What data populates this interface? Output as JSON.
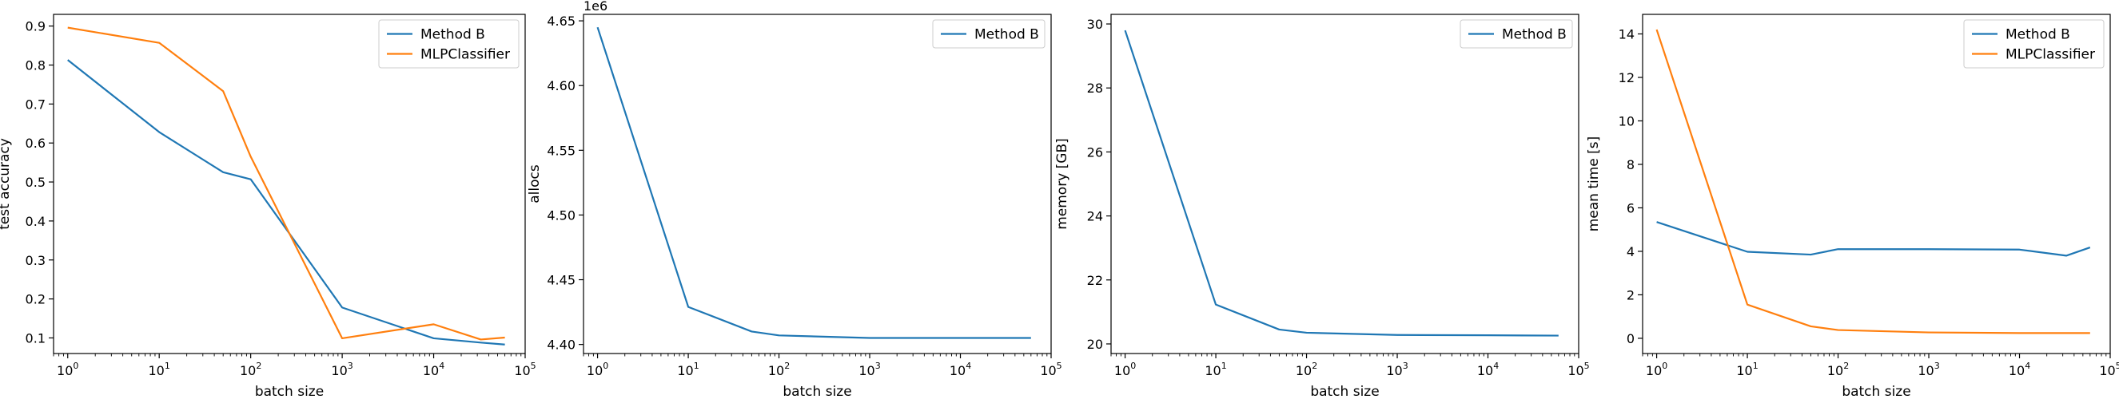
{
  "chart_data": [
    {
      "type": "line",
      "xscale": "log",
      "xlim": [
        0.7,
        100000
      ],
      "ylim": [
        0.06,
        0.93
      ],
      "yticks": [
        0.1,
        0.2,
        0.3,
        0.4,
        0.5,
        0.6,
        0.7,
        0.8,
        0.9
      ],
      "ytick_labels": [
        "0.1",
        "0.2",
        "0.3",
        "0.4",
        "0.5",
        "0.6",
        "0.7",
        "0.8",
        "0.9"
      ],
      "xlabel": "batch size",
      "ylabel": "test accuracy",
      "offset_text": "",
      "legend": "top-right",
      "series": [
        {
          "name": "Method B",
          "color": "#1f77b4",
          "x": [
            1,
            10,
            50,
            100,
            1000,
            10000,
            32768,
            60000
          ],
          "y": [
            0.813,
            0.628,
            0.525,
            0.507,
            0.178,
            0.099,
            0.088,
            0.083
          ]
        },
        {
          "name": "MLPClassifier",
          "color": "#ff7f0e",
          "x": [
            1,
            10,
            50,
            100,
            1000,
            10000,
            32768,
            60000
          ],
          "y": [
            0.896,
            0.857,
            0.733,
            0.565,
            0.099,
            0.135,
            0.096,
            0.101
          ]
        }
      ]
    },
    {
      "type": "line",
      "xscale": "log",
      "xlim": [
        0.7,
        100000
      ],
      "ylim": [
        4.393,
        4.655
      ],
      "yticks": [
        4.4,
        4.45,
        4.5,
        4.55,
        4.6,
        4.65
      ],
      "ytick_labels": [
        "4.40",
        "4.45",
        "4.50",
        "4.55",
        "4.60",
        "4.65"
      ],
      "xlabel": "batch size",
      "ylabel": "allocs",
      "offset_text": "1e6",
      "legend": "top-right",
      "series": [
        {
          "name": "Method B",
          "color": "#1f77b4",
          "x": [
            1,
            10,
            50,
            100,
            1000,
            10000,
            60000
          ],
          "y": [
            4.645,
            4.429,
            4.41,
            4.407,
            4.405,
            4.405,
            4.405
          ]
        }
      ]
    },
    {
      "type": "line",
      "xscale": "log",
      "xlim": [
        0.7,
        100000
      ],
      "ylim": [
        19.7,
        30.3
      ],
      "yticks": [
        20,
        22,
        24,
        26,
        28,
        30
      ],
      "ytick_labels": [
        "20",
        "22",
        "24",
        "26",
        "28",
        "30"
      ],
      "xlabel": "batch size",
      "ylabel": "memory [GB]",
      "offset_text": "",
      "legend": "top-right",
      "series": [
        {
          "name": "Method B",
          "color": "#1f77b4",
          "x": [
            1,
            10,
            50,
            100,
            1000,
            10000,
            60000
          ],
          "y": [
            29.8,
            21.23,
            20.45,
            20.35,
            20.28,
            20.27,
            20.26
          ]
        }
      ]
    },
    {
      "type": "line",
      "xscale": "log",
      "xlim": [
        0.7,
        100000
      ],
      "ylim": [
        -0.7,
        14.9
      ],
      "yticks": [
        0,
        2,
        4,
        6,
        8,
        10,
        12,
        14
      ],
      "ytick_labels": [
        "0",
        "2",
        "4",
        "6",
        "8",
        "10",
        "12",
        "14"
      ],
      "xlabel": "batch size",
      "ylabel": "mean time [s]",
      "offset_text": "",
      "legend": "top-right",
      "series": [
        {
          "name": "Method B",
          "color": "#1f77b4",
          "x": [
            1,
            10,
            50,
            100,
            1000,
            10000,
            32768,
            60000
          ],
          "y": [
            5.35,
            3.98,
            3.85,
            4.1,
            4.1,
            4.08,
            3.8,
            4.18
          ]
        },
        {
          "name": "MLPClassifier",
          "color": "#ff7f0e",
          "x": [
            1,
            10,
            50,
            100,
            1000,
            10000,
            32768,
            60000
          ],
          "y": [
            14.2,
            1.55,
            0.55,
            0.38,
            0.27,
            0.24,
            0.24,
            0.24
          ]
        }
      ]
    }
  ]
}
